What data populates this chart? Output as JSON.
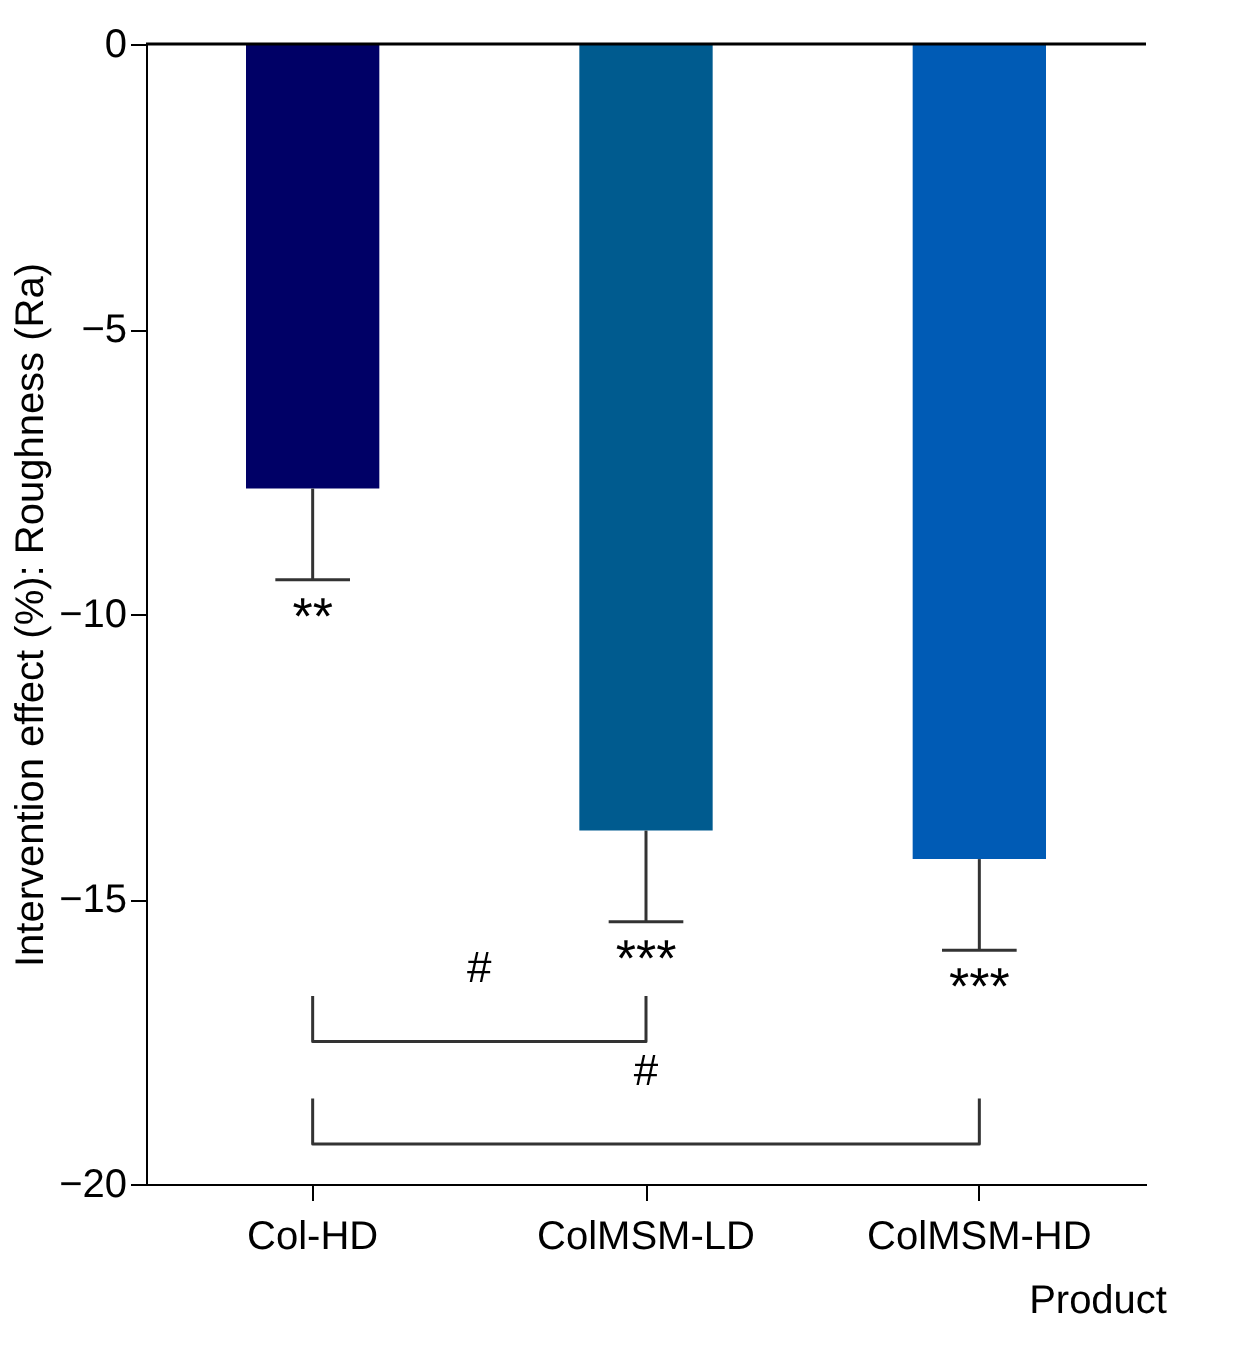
{
  "chart_data": {
    "type": "bar",
    "xlabel": "Product",
    "ylabel": "Intervention effect (%): Roughness (Ra)",
    "categories": [
      "Col-HD",
      "ColMSM-LD",
      "ColMSM-HD"
    ],
    "values": [
      -7.8,
      -13.8,
      -14.3
    ],
    "colors": [
      "#000066",
      "#005b8f",
      "#005bb5"
    ],
    "errors": [
      [
        -9.4,
        -7.8
      ],
      [
        -15.4,
        -13.8
      ],
      [
        -15.9,
        -14.3
      ]
    ],
    "ylim": [
      -20,
      0
    ],
    "yticks": [
      0,
      -5,
      -10,
      -15,
      -20
    ],
    "grid": false,
    "annotations": [
      "**",
      "***",
      "***",
      "#",
      "#"
    ]
  }
}
